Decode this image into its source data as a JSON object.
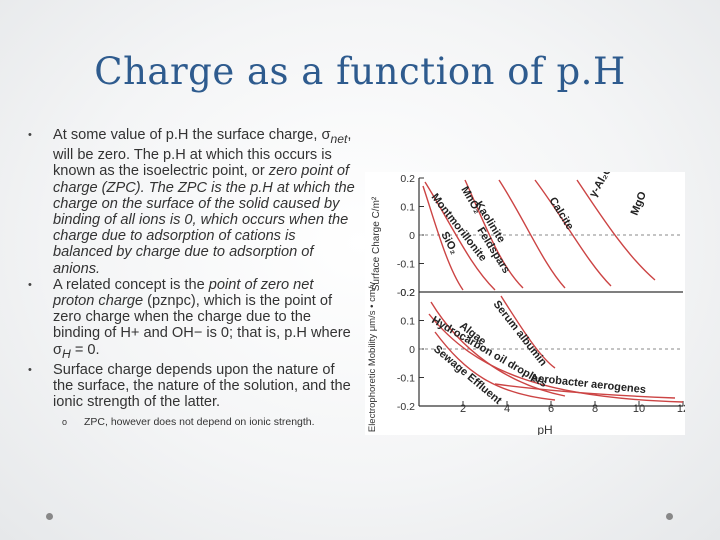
{
  "slide": {
    "title": "Charge as a function of p.H",
    "bullets": [
      {
        "parts": [
          "At some value of p.H the surface charge, σ",
          "net",
          ", will be zero. The p.H at which this occurs is known as the isoelectric point, or ",
          "zero point of charge",
          " (ZPC). The ZPC is the p.H at which the charge on the surface of the solid caused by binding of all ions is 0, which occurs when the charge due to adsorption of cations is balanced by charge due to adsorption of anions."
        ]
      },
      {
        "parts": [
          "A related concept is the ",
          "point of zero net proton charge",
          " (pznpc), which is the point of zero charge when the charge due to the binding of H+ and OH− is 0; that is, p.H where σ",
          "H",
          " = 0."
        ]
      },
      {
        "parts": [
          "Surface charge depends upon the nature of the surface, the nature of the solution, and the ionic strength of the latter."
        ]
      }
    ],
    "sub_bullet": "ZPC, however does not depend on ionic strength."
  },
  "chart_data": {
    "type": "line",
    "xlabel": "pH",
    "xlim": [
      0,
      12
    ],
    "x_ticks": [
      "2",
      "4",
      "6",
      "8",
      "10",
      "12"
    ],
    "panels": [
      {
        "ylabel": "Surface Charge C/m²",
        "ylim": [
          -0.2,
          0.2
        ],
        "y_ticks": [
          "0.2",
          "0.1",
          "0",
          "-0.1",
          "-0.2"
        ],
        "series_labels": [
          "Montmorillonite",
          "SiO₂",
          "Kaolinite",
          "Feldspars",
          "MnO₂",
          "Calcite",
          "γ-Al₂O₃",
          "MgO"
        ]
      },
      {
        "ylabel": "Electrophoretic Mobility μm/s • cm/v",
        "ylim": [
          -0.2,
          0.2
        ],
        "y_ticks": [
          "0.2",
          "0.1",
          "0",
          "-0.1",
          "-0.2"
        ],
        "series_labels": [
          "Serum albumin",
          "Algae",
          "Hydrocarbon oil droplets",
          "Sewage Effluent",
          "Aerobacter aerogenes"
        ]
      }
    ]
  },
  "colors": {
    "title": "#2e5b8e",
    "curve": "#cc4444",
    "axis": "#333333"
  }
}
